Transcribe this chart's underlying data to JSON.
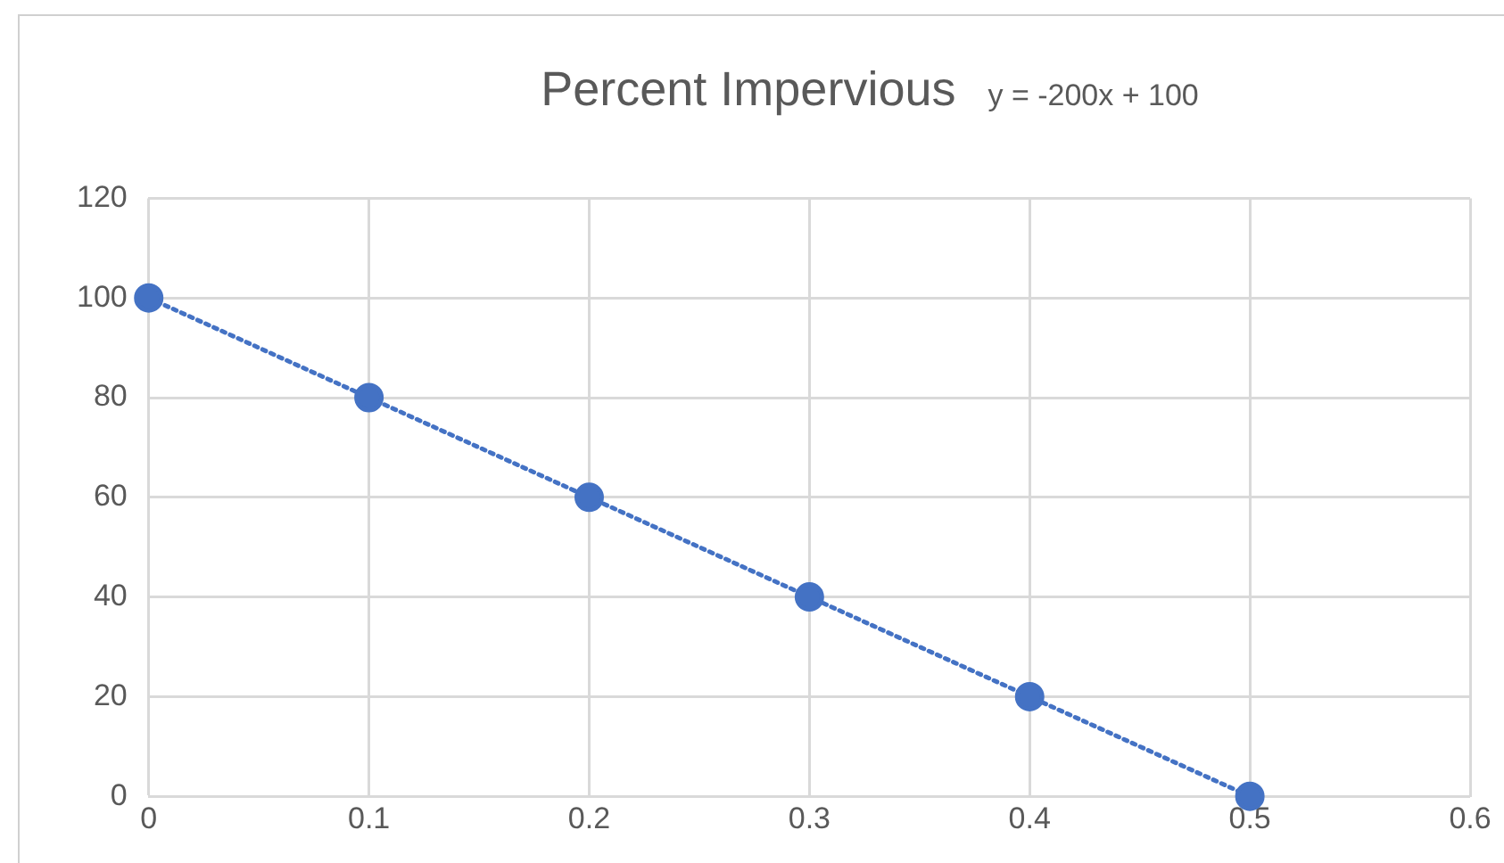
{
  "chart_data": {
    "type": "scatter",
    "title": "Percent Impervious",
    "annotations": [
      "y = -200x + 100"
    ],
    "x": [
      0,
      0.1,
      0.2,
      0.3,
      0.4,
      0.5
    ],
    "series": [
      {
        "type": "scatter",
        "color": "#4472c4",
        "values": [
          100,
          80,
          60,
          40,
          20,
          0
        ],
        "marker": "circle"
      },
      {
        "type": "line",
        "color": "#4472c4",
        "x": [
          0,
          0.5
        ],
        "values": [
          100,
          0
        ],
        "line_style": "dotted",
        "marker": "none"
      }
    ],
    "xlim": [
      0,
      0.6
    ],
    "xticks": [
      0,
      0.1,
      0.2,
      0.3,
      0.4,
      0.5,
      0.6
    ],
    "ylim": [
      0,
      120
    ],
    "yticks": [
      0,
      20,
      40,
      60,
      80,
      100,
      120
    ],
    "grid": true,
    "legend": false
  }
}
